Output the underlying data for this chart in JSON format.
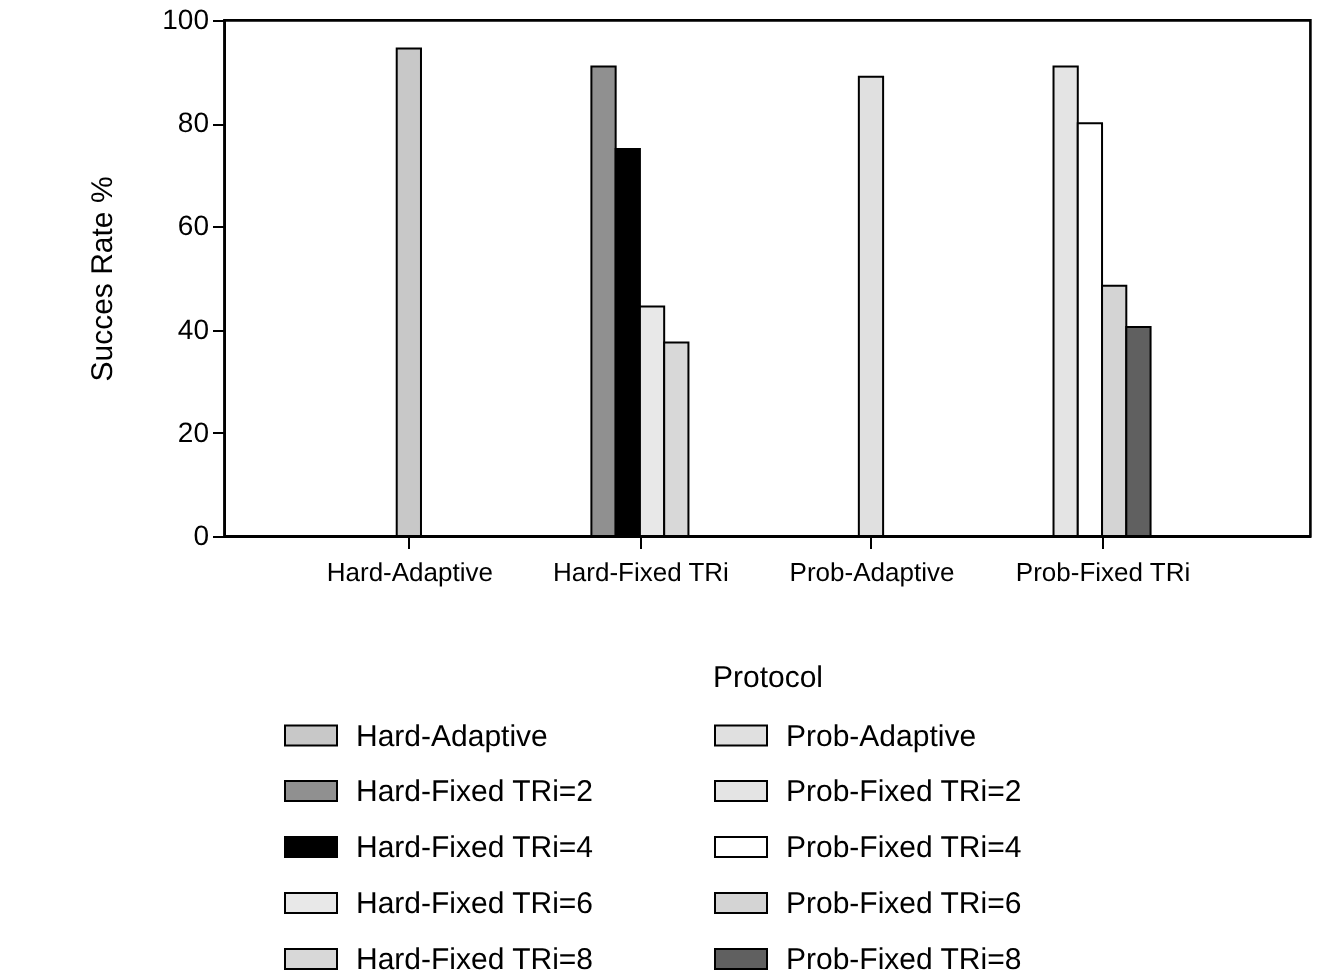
{
  "chart_data": {
    "type": "bar",
    "xlabel": "Protocol",
    "ylabel": "Succes Rate %",
    "categories": [
      "Hard-Adaptive",
      "Hard-Fixed TRi",
      "Prob-Adaptive",
      "Prob-Fixed TRi"
    ],
    "ylim": [
      0,
      100
    ],
    "yticks": [
      0,
      20,
      40,
      60,
      80,
      100
    ],
    "grid": false,
    "legend": "bottom",
    "series": [
      {
        "name": "Hard-Adaptive",
        "color": "#c8c8c8",
        "values": [
          94.5,
          null,
          null,
          null
        ]
      },
      {
        "name": "Hard-Fixed TRi=2",
        "color": "#909090",
        "values": [
          null,
          91,
          null,
          null
        ]
      },
      {
        "name": "Hard-Fixed TRi=4",
        "color": "#000000",
        "values": [
          null,
          75,
          null,
          null
        ]
      },
      {
        "name": "Hard-Fixed TRi=6",
        "color": "#e8e8e8",
        "values": [
          null,
          44.5,
          null,
          null
        ]
      },
      {
        "name": "Hard-Fixed TRi=8",
        "color": "#d8d8d8",
        "values": [
          null,
          37.5,
          null,
          null
        ]
      },
      {
        "name": "Prob-Adaptive",
        "color": "#e0e0e0",
        "values": [
          null,
          null,
          89,
          null
        ]
      },
      {
        "name": "Prob-Fixed TRi=2",
        "color": "#e4e4e4",
        "values": [
          null,
          null,
          null,
          91
        ]
      },
      {
        "name": "Prob-Fixed TRi=4",
        "color": "#ffffff",
        "values": [
          null,
          null,
          null,
          80
        ]
      },
      {
        "name": "Prob-Fixed TRi=6",
        "color": "#d4d4d4",
        "values": [
          null,
          null,
          null,
          48.5
        ]
      },
      {
        "name": "Prob-Fixed TRi=8",
        "color": "#606060",
        "values": [
          null,
          null,
          null,
          40.5
        ]
      }
    ]
  }
}
